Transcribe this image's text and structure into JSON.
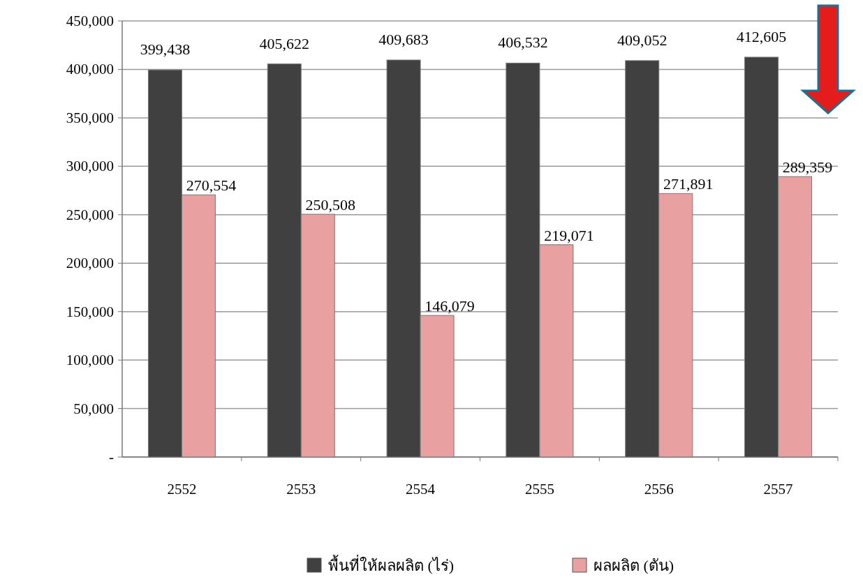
{
  "chart_data": {
    "type": "bar",
    "categories": [
      "2552",
      "2553",
      "2554",
      "2555",
      "2556",
      "2557"
    ],
    "series": [
      {
        "name": "พื้นที่ให้ผลผลิต (ไร่)",
        "color": "#404040",
        "values": [
          399438,
          405622,
          409683,
          406532,
          409052,
          412605
        ],
        "value_labels": [
          "399,438",
          "405,622",
          "409,683",
          "406,532",
          "409,052",
          "412,605"
        ]
      },
      {
        "name": "ผลผลิต (ตัน)",
        "color": "#e8a0a0",
        "values": [
          270554,
          250508,
          146079,
          219071,
          271891,
          289359
        ],
        "value_labels": [
          "270,554",
          "250,508",
          "146,079",
          "219,071",
          "271,891",
          "289,359"
        ]
      }
    ],
    "ylim": [
      0,
      450000
    ],
    "yticks": [
      {
        "value": 0,
        "label": "-"
      },
      {
        "value": 50000,
        "label": "50,000"
      },
      {
        "value": 100000,
        "label": "100,000"
      },
      {
        "value": 150000,
        "label": "150,000"
      },
      {
        "value": 200000,
        "label": "200,000"
      },
      {
        "value": 250000,
        "label": "250,000"
      },
      {
        "value": 300000,
        "label": "300,000"
      },
      {
        "value": 350000,
        "label": "350,000"
      },
      {
        "value": 400000,
        "label": "400,000"
      },
      {
        "value": 450000,
        "label": "450,000"
      }
    ],
    "grid": "y",
    "legend": "bottom"
  }
}
